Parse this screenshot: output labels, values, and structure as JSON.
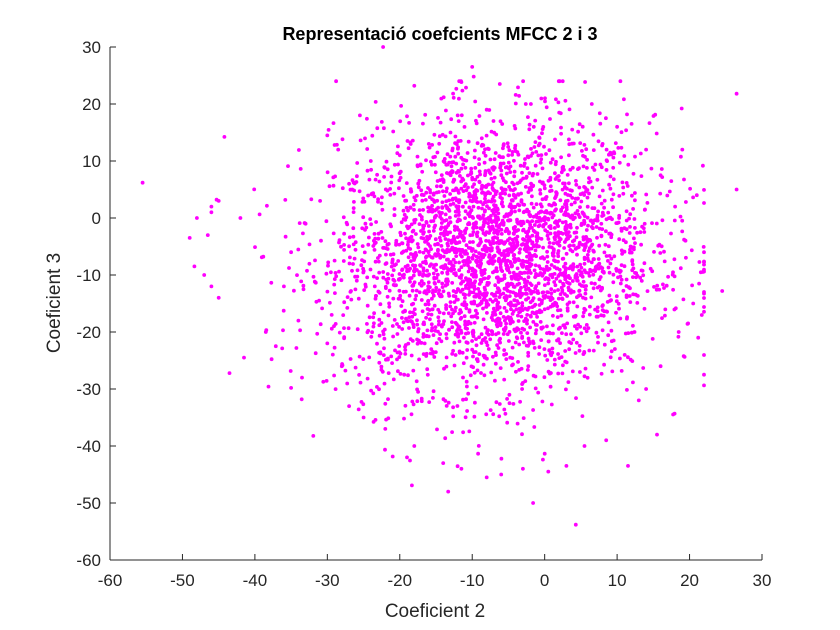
{
  "chart_data": {
    "type": "scatter",
    "title": "Representació coefcients MFCC 2 i 3",
    "xlabel": "Coeficient 2",
    "ylabel": "Coeficient 3",
    "xlim": [
      -60,
      30
    ],
    "ylim": [
      -60,
      30
    ],
    "xticks": [
      "-60",
      "-50",
      "-40",
      "-30",
      "-20",
      "-10",
      "0",
      "10",
      "20",
      "30"
    ],
    "yticks": [
      "30",
      "20",
      "10",
      "0",
      "-10",
      "-20",
      "-30",
      "-40",
      "-50",
      "-60"
    ],
    "grid": false,
    "marker_color": "#FF00FF",
    "points_approx_center": [
      -7,
      -7
    ],
    "points_approx_spread": [
      11,
      11.5
    ],
    "points_approx_count": 3200,
    "series": [
      {
        "values": [
          [
            -55.5,
            6.2
          ],
          [
            -22.3,
            30.0
          ],
          [
            -10.0,
            26.5
          ],
          [
            -9.8,
            24.8
          ],
          [
            -6.2,
            23.5
          ],
          [
            -18.0,
            23.2
          ],
          [
            26.5,
            21.8
          ],
          [
            -4.0,
            21.6
          ],
          [
            6.5,
            20.0
          ],
          [
            -1.9,
            20.0
          ],
          [
            -2.6,
            20.0
          ],
          [
            -12.0,
            18.0
          ],
          [
            -25.5,
            18.0
          ],
          [
            12.0,
            16.5
          ],
          [
            -30.0,
            14.5
          ],
          [
            19.0,
            12.0
          ],
          [
            -29.0,
            12.8
          ],
          [
            -28.5,
            12.0
          ],
          [
            -45.0,
            3.0
          ],
          [
            -46.0,
            2.0
          ],
          [
            -46.0,
            1.0
          ],
          [
            -49.0,
            -3.5
          ],
          [
            -46.5,
            -3.0
          ],
          [
            -42.0,
            0.0
          ],
          [
            -48.0,
            0.0
          ],
          [
            -47.0,
            -10.0
          ],
          [
            -46.0,
            -12.0
          ],
          [
            -45.0,
            -14.0
          ],
          [
            -41.5,
            -24.5
          ],
          [
            -38.5,
            -20.0
          ],
          [
            -35.0,
            -29.8
          ],
          [
            -33.5,
            -28.0
          ],
          [
            21.0,
            4.0
          ],
          [
            26.5,
            5.0
          ],
          [
            24.5,
            -12.8
          ],
          [
            21.2,
            -21.0
          ],
          [
            19.8,
            -18.5
          ],
          [
            15.5,
            -38.0
          ],
          [
            11.5,
            -43.5
          ],
          [
            -1.6,
            -50.0
          ],
          [
            4.3,
            -53.8
          ],
          [
            -8.0,
            -45.5
          ],
          [
            -6.0,
            -45.0
          ],
          [
            0.5,
            -44.5
          ],
          [
            3.0,
            -43.5
          ],
          [
            -3.0,
            -44.0
          ],
          [
            -11.5,
            -44.0
          ],
          [
            -14.0,
            -43.0
          ],
          [
            -18.0,
            -40.0
          ],
          [
            -19.0,
            -42.0
          ],
          [
            -25.0,
            -35.0
          ],
          [
            -22.0,
            -37.0
          ],
          [
            -27.0,
            -33.0
          ],
          [
            5.5,
            -40.0
          ],
          [
            8.5,
            -39.0
          ],
          [
            13.0,
            -32.0
          ],
          [
            14.0,
            -30.0
          ],
          [
            16.0,
            -26.0
          ],
          [
            18.5,
            -20.0
          ],
          [
            20.5,
            -15.0
          ],
          [
            22.0,
            -6.0
          ],
          [
            18.0,
            2.0
          ],
          [
            16.0,
            7.5
          ],
          [
            14.0,
            12.0
          ],
          [
            10.0,
            16.0
          ],
          [
            8.0,
            13.0
          ],
          [
            2.0,
            18.5
          ],
          [
            -1.5,
            16.0
          ],
          [
            -8.0,
            19.0
          ],
          [
            -13.0,
            15.0
          ],
          [
            -16.0,
            13.0
          ],
          [
            -20.0,
            11.0
          ],
          [
            -24.0,
            10.0
          ],
          [
            -27.0,
            6.0
          ],
          [
            -31.0,
            3.0
          ],
          [
            -33.0,
            -1.0
          ],
          [
            -35.0,
            -6.0
          ],
          [
            -36.0,
            -12.0
          ],
          [
            -34.0,
            -18.0
          ],
          [
            -30.0,
            -22.0
          ],
          [
            -28.0,
            -26.0
          ]
        ]
      }
    ]
  }
}
